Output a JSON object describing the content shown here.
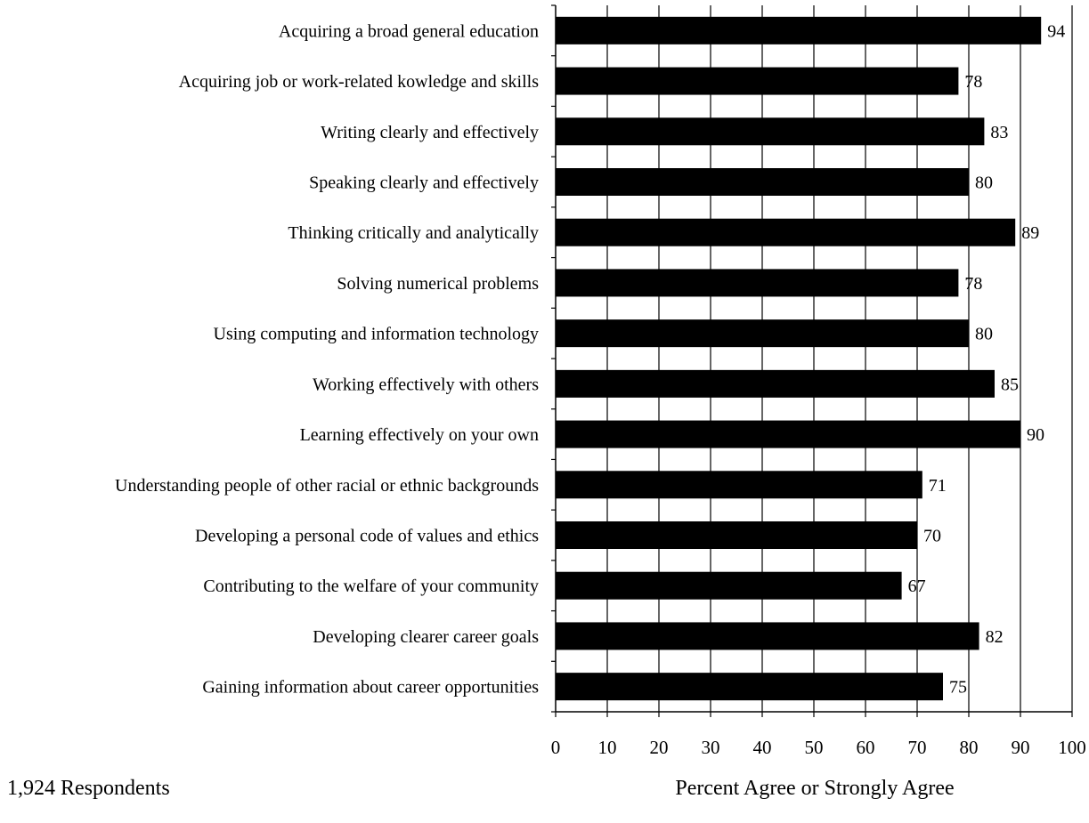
{
  "chart_data": {
    "type": "bar",
    "orientation": "horizontal",
    "categories": [
      "Acquiring a broad general education",
      "Acquiring job or work-related kowledge and skills",
      "Writing clearly and effectively",
      "Speaking clearly and effectively",
      "Thinking critically and analytically",
      "Solving numerical problems",
      "Using computing and information technology",
      "Working effectively with others",
      "Learning effectively on your own",
      "Understanding people of other racial or ethnic backgrounds",
      "Developing a personal code of values and ethics",
      "Contributing to the welfare of your community",
      "Developing clearer career goals",
      "Gaining information about career opportunities"
    ],
    "values": [
      94,
      78,
      83,
      80,
      89,
      78,
      80,
      85,
      90,
      71,
      70,
      67,
      82,
      75
    ],
    "data_labels": [
      "94",
      "78",
      "83",
      "80",
      "89",
      "78",
      "80",
      "85",
      "90",
      "71",
      "70",
      "67",
      "82",
      "75"
    ],
    "xlim": [
      0,
      100
    ],
    "x_ticks": [
      0,
      10,
      20,
      30,
      40,
      50,
      60,
      70,
      80,
      90,
      100
    ],
    "xlabel": "Percent Agree or Strongly Agree",
    "note": "1,924 Respondents",
    "grid": "vertical",
    "bar_color": "#000000"
  }
}
